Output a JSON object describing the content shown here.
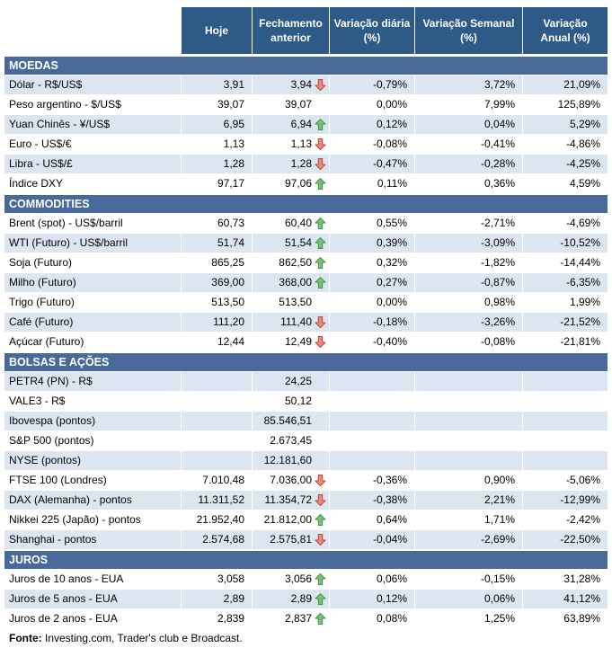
{
  "chart_data": {
    "type": "table",
    "columns": [
      "Hoje",
      "Fechamento\nanterior",
      "Variação diária\n(%)",
      "Variação Semanal\n(%)",
      "Variação\nAnual (%)"
    ],
    "sections": [
      {
        "title": "MOEDAS",
        "rows": [
          {
            "label": "Dólar - R$/US$",
            "hoje": "3,91",
            "fechamento": "3,94",
            "trend": "down",
            "diaria": "-0,79%",
            "semanal": "3,72%",
            "anual": "21,09%"
          },
          {
            "label": "Peso argentino - $/US$",
            "hoje": "39,07",
            "fechamento": "39,07",
            "trend": "",
            "diaria": "0,00%",
            "semanal": "7,99%",
            "anual": "125,89%"
          },
          {
            "label": "Yuan Chinês - ¥/US$",
            "hoje": "6,95",
            "fechamento": "6,94",
            "trend": "up",
            "diaria": "0,12%",
            "semanal": "0,04%",
            "anual": "5,29%"
          },
          {
            "label": "Euro - US$/€",
            "hoje": "1,13",
            "fechamento": "1,13",
            "trend": "down",
            "diaria": "-0,08%",
            "semanal": "-0,41%",
            "anual": "-4,86%"
          },
          {
            "label": "Libra - US$/£",
            "hoje": "1,28",
            "fechamento": "1,28",
            "trend": "down",
            "diaria": "-0,47%",
            "semanal": "-0,28%",
            "anual": "-4,25%"
          },
          {
            "label": "Índice DXY",
            "hoje": "97,17",
            "fechamento": "97,06",
            "trend": "up",
            "diaria": "0,11%",
            "semanal": "0,36%",
            "anual": "4,59%"
          }
        ]
      },
      {
        "title": "COMMODITIES",
        "rows": [
          {
            "label": "Brent (spot) - US$/barril",
            "hoje": "60,73",
            "fechamento": "60,40",
            "trend": "up",
            "diaria": "0,55%",
            "semanal": "-2,71%",
            "anual": "-4,69%"
          },
          {
            "label": "WTI (Futuro) - US$/barril",
            "hoje": "51,74",
            "fechamento": "51,54",
            "trend": "up",
            "diaria": "0,39%",
            "semanal": "-3,09%",
            "anual": "-10,52%"
          },
          {
            "label": "Soja (Futuro)",
            "hoje": "865,25",
            "fechamento": "862,50",
            "trend": "up",
            "diaria": "0,32%",
            "semanal": "-1,82%",
            "anual": "-14,44%"
          },
          {
            "label": "Milho (Futuro)",
            "hoje": "369,00",
            "fechamento": "368,00",
            "trend": "up",
            "diaria": "0,27%",
            "semanal": "-0,87%",
            "anual": "-6,35%"
          },
          {
            "label": "Trigo (Futuro)",
            "hoje": "513,50",
            "fechamento": "513,50",
            "trend": "",
            "diaria": "0,00%",
            "semanal": "0,98%",
            "anual": "1,99%"
          },
          {
            "label": "Café (Futuro)",
            "hoje": "111,20",
            "fechamento": "111,40",
            "trend": "down",
            "diaria": "-0,18%",
            "semanal": "-3,26%",
            "anual": "-21,52%"
          },
          {
            "label": "Açúcar (Futuro)",
            "hoje": "12,44",
            "fechamento": "12,49",
            "trend": "down",
            "diaria": "-0,40%",
            "semanal": "-0,08%",
            "anual": "-21,81%"
          }
        ]
      },
      {
        "title": "BOLSAS E AÇÕES",
        "rows": [
          {
            "label": "PETR4 (PN) - R$",
            "hoje": "",
            "fechamento": "24,25",
            "trend": "",
            "diaria": "",
            "semanal": "",
            "anual": ""
          },
          {
            "label": "VALE3 - R$",
            "hoje": "",
            "fechamento": "50,12",
            "trend": "",
            "diaria": "",
            "semanal": "",
            "anual": ""
          },
          {
            "label": "Ibovespa (pontos)",
            "hoje": "",
            "fechamento": "85.546,51",
            "trend": "",
            "diaria": "",
            "semanal": "",
            "anual": ""
          },
          {
            "label": "S&P 500 (pontos)",
            "hoje": "",
            "fechamento": "2.673,45",
            "trend": "",
            "diaria": "",
            "semanal": "",
            "anual": ""
          },
          {
            "label": "NYSE (pontos)",
            "hoje": "",
            "fechamento": "12.181,60",
            "trend": "",
            "diaria": "",
            "semanal": "",
            "anual": ""
          },
          {
            "label": "FTSE 100 (Londres)",
            "hoje": "7.010,48",
            "fechamento": "7.036,00",
            "trend": "down",
            "diaria": "-0,36%",
            "semanal": "0,90%",
            "anual": "-5,06%"
          },
          {
            "label": "DAX (Alemanha) - pontos",
            "hoje": "11.311,52",
            "fechamento": "11.354,72",
            "trend": "down",
            "diaria": "-0,38%",
            "semanal": "2,21%",
            "anual": "-12,99%"
          },
          {
            "label": "Nikkei 225 (Japão) - pontos",
            "hoje": "21.952,40",
            "fechamento": "21.812,00",
            "trend": "up",
            "diaria": "0,64%",
            "semanal": "1,71%",
            "anual": "-2,42%"
          },
          {
            "label": "Shanghai - pontos",
            "hoje": "2.574,68",
            "fechamento": "2.575,81",
            "trend": "down",
            "diaria": "-0,04%",
            "semanal": "-2,69%",
            "anual": "-22,50%"
          }
        ]
      },
      {
        "title": "JUROS",
        "rows": [
          {
            "label": "Juros de 10 anos - EUA",
            "hoje": "3,058",
            "fechamento": "3,056",
            "trend": "up",
            "diaria": "0,06%",
            "semanal": "-0,15%",
            "anual": "31,28%"
          },
          {
            "label": "Juros de 5 anos - EUA",
            "hoje": "2,89",
            "fechamento": "2,89",
            "trend": "up",
            "diaria": "0,12%",
            "semanal": "0,06%",
            "anual": "41,12%"
          },
          {
            "label": "Juros de 2 anos - EUA",
            "hoje": "2,839",
            "fechamento": "2,837",
            "trend": "up",
            "diaria": "0,08%",
            "semanal": "1,25%",
            "anual": "63,89%"
          }
        ]
      }
    ]
  },
  "footer": {
    "label": "Fonte:",
    "text": " Investing.com, Trader's club e Broadcast."
  },
  "colors": {
    "header_bg": "#2D5A87",
    "section_bg": "#48699A",
    "row_shaded": "#DCE6F1",
    "arrow_up_fill": "#76C176",
    "arrow_up_stroke": "#3E8E41",
    "arrow_down_fill": "#EE8B80",
    "arrow_down_stroke": "#C0392B"
  }
}
